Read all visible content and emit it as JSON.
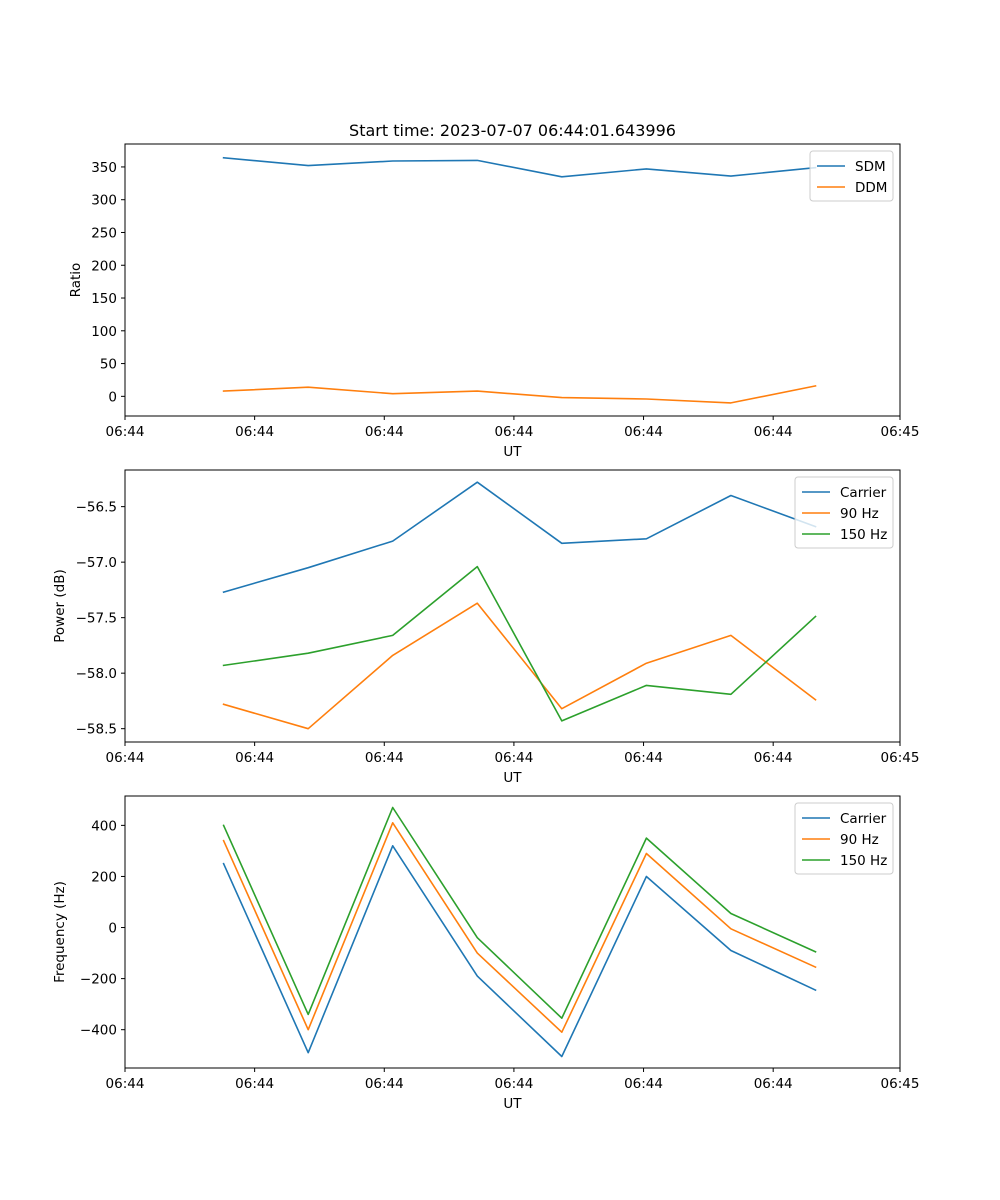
{
  "chart_data": [
    {
      "type": "line",
      "title": "Start time: 2023-07-07 06:44:01.643996",
      "xlabel": "UT",
      "ylabel": "Ratio",
      "x": [
        0.7,
        1.3,
        1.9,
        2.5,
        3.1,
        3.7,
        4.3,
        4.9
      ],
      "xlim": [
        0.0,
        5.5
      ],
      "xticks": [
        0.0,
        0.92,
        1.84,
        2.76,
        3.68,
        4.6,
        5.5
      ],
      "xtick_labels": [
        "06:44",
        "06:44",
        "06:44",
        "06:44",
        "06:44",
        "06:44",
        "06:45"
      ],
      "ylim": [
        -30,
        385
      ],
      "yticks": [
        0,
        50,
        100,
        150,
        200,
        250,
        300,
        350
      ],
      "ytick_labels": [
        "0",
        "50",
        "100",
        "150",
        "200",
        "250",
        "300",
        "350"
      ],
      "legend": "upper right",
      "grid": false,
      "series": [
        {
          "name": "SDM",
          "color": "#1f77b4",
          "values": [
            364,
            352,
            359,
            360,
            335,
            347,
            336,
            349
          ]
        },
        {
          "name": "DDM",
          "color": "#ff7f0e",
          "values": [
            8,
            14,
            4,
            8,
            -2,
            -4,
            -10,
            16
          ]
        }
      ]
    },
    {
      "type": "line",
      "title": "",
      "xlabel": "UT",
      "ylabel": "Power (dB)",
      "x": [
        0.7,
        1.3,
        1.9,
        2.5,
        3.1,
        3.7,
        4.3,
        4.9
      ],
      "xlim": [
        0.0,
        5.5
      ],
      "xticks": [
        0.0,
        0.92,
        1.84,
        2.76,
        3.68,
        4.6,
        5.5
      ],
      "xtick_labels": [
        "06:44",
        "06:44",
        "06:44",
        "06:44",
        "06:44",
        "06:44",
        "06:45"
      ],
      "ylim": [
        -58.62,
        -56.17
      ],
      "yticks": [
        -58.5,
        -58.0,
        -57.5,
        -57.0,
        -56.5
      ],
      "ytick_labels": [
        "−58.5",
        "−58.0",
        "−57.5",
        "−57.0",
        "−56.5"
      ],
      "legend": "upper right",
      "grid": false,
      "series": [
        {
          "name": "Carrier",
          "color": "#1f77b4",
          "values": [
            -57.27,
            -57.05,
            -56.81,
            -56.28,
            -56.83,
            -56.79,
            -56.4,
            -56.68
          ]
        },
        {
          "name": "90 Hz",
          "color": "#ff7f0e",
          "values": [
            -58.28,
            -58.5,
            -57.84,
            -57.37,
            -58.32,
            -57.91,
            -57.66,
            -58.24
          ]
        },
        {
          "name": "150 Hz",
          "color": "#2ca02c",
          "values": [
            -57.93,
            -57.82,
            -57.66,
            -57.04,
            -58.43,
            -58.11,
            -58.19,
            -57.49
          ]
        }
      ]
    },
    {
      "type": "line",
      "title": "",
      "xlabel": "UT",
      "ylabel": "Frequency (Hz)",
      "x": [
        0.7,
        1.3,
        1.9,
        2.5,
        3.1,
        3.7,
        4.3,
        4.9
      ],
      "xlim": [
        0.0,
        5.5
      ],
      "xticks": [
        0.0,
        0.92,
        1.84,
        2.76,
        3.68,
        4.6,
        5.5
      ],
      "xtick_labels": [
        "06:44",
        "06:44",
        "06:44",
        "06:44",
        "06:44",
        "06:44",
        "06:45"
      ],
      "ylim": [
        -550,
        515
      ],
      "yticks": [
        -400,
        -200,
        0,
        200,
        400
      ],
      "ytick_labels": [
        "−400",
        "−200",
        "0",
        "200",
        "400"
      ],
      "legend": "upper right",
      "grid": false,
      "series": [
        {
          "name": "Carrier",
          "color": "#1f77b4",
          "values": [
            250,
            -490,
            320,
            -190,
            -505,
            200,
            -90,
            -245
          ]
        },
        {
          "name": "90 Hz",
          "color": "#ff7f0e",
          "values": [
            340,
            -400,
            410,
            -100,
            -410,
            290,
            -5,
            -155
          ]
        },
        {
          "name": "150 Hz",
          "color": "#2ca02c",
          "values": [
            400,
            -340,
            470,
            -40,
            -355,
            350,
            55,
            -95
          ]
        }
      ]
    }
  ]
}
